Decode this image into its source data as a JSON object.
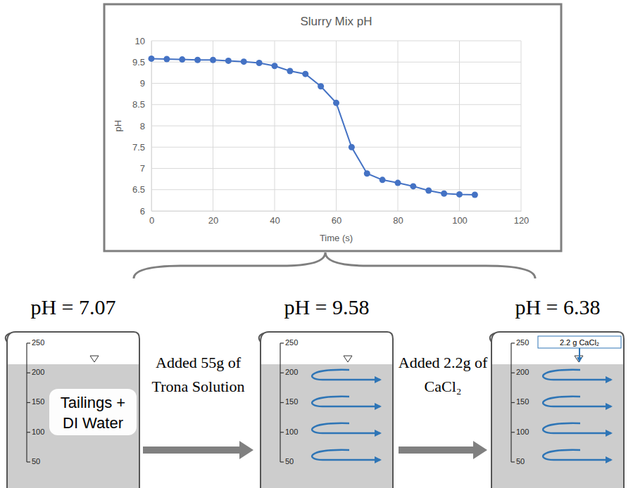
{
  "chart_data": {
    "type": "line",
    "title": "Slurry Mix pH",
    "x_label": "Time (s)",
    "y_label": "pH",
    "x": [
      0,
      5,
      10,
      15,
      20,
      25,
      30,
      35,
      40,
      45,
      50,
      55,
      60,
      65,
      70,
      75,
      80,
      85,
      90,
      95,
      100,
      105
    ],
    "values": [
      9.58,
      9.57,
      9.56,
      9.55,
      9.55,
      9.53,
      9.51,
      9.48,
      9.41,
      9.29,
      9.22,
      8.93,
      8.54,
      7.5,
      6.88,
      6.73,
      6.66,
      6.58,
      6.48,
      6.41,
      6.39,
      6.38
    ],
    "color": "#4472c4",
    "marker": "circle",
    "line_style": "solid",
    "xlim": [
      0,
      120
    ],
    "xticks": [
      0,
      20,
      40,
      60,
      80,
      100,
      120
    ],
    "ylim": [
      6,
      10
    ],
    "yticks": [
      6,
      6.5,
      7,
      7.5,
      8,
      8.5,
      9,
      9.5,
      10
    ],
    "grid": true
  },
  "diagram": {
    "beakers": [
      {
        "ph_label": "pH = 7.07",
        "content": [
          "Tailings +",
          "DI Water"
        ]
      },
      {
        "ph_label": "pH = 9.58"
      },
      {
        "ph_label": "pH = 6.38",
        "addition": "2.2 g CaCl₂"
      }
    ],
    "steps": [
      [
        "Added 55g of",
        "Trona Solution"
      ],
      [
        "Added 2.2g of",
        "CaCl₂"
      ]
    ],
    "scale_labels": [
      250,
      200,
      150,
      100,
      50
    ]
  }
}
